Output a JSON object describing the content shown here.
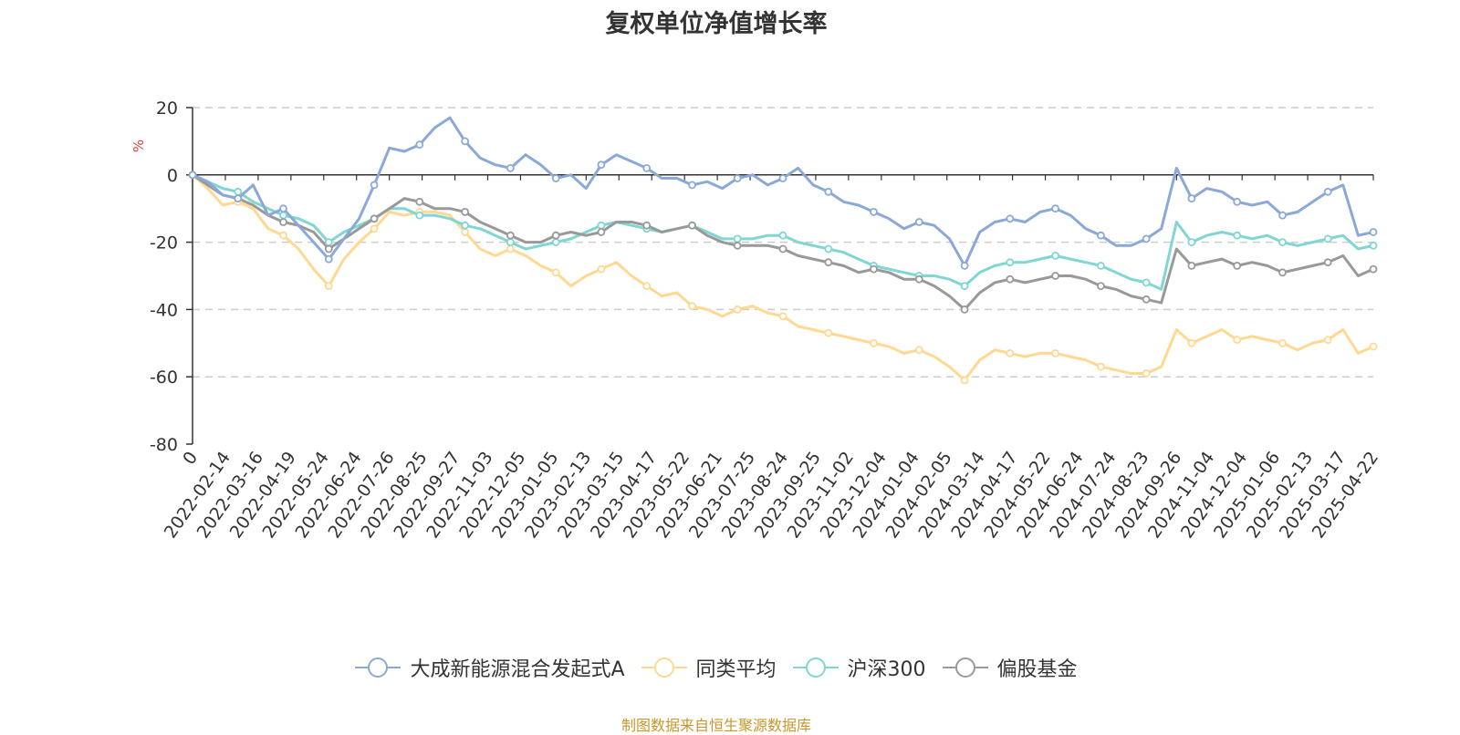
{
  "chart_data": {
    "type": "line",
    "title": "复权单位净值增长率",
    "ylabel": "%",
    "ylim": [
      -80,
      20
    ],
    "yticks": [
      20,
      0,
      -20,
      -40,
      -60,
      -80
    ],
    "grid": true,
    "legend_position": "bottom",
    "x_tick_labels": [
      "0",
      "2022-02-14",
      "2022-03-16",
      "2022-04-19",
      "2022-05-24",
      "2022-06-24",
      "2022-07-26",
      "2022-08-25",
      "2022-09-27",
      "2022-11-03",
      "2022-12-05",
      "2023-01-05",
      "2023-02-13",
      "2023-03-15",
      "2023-04-17",
      "2023-05-22",
      "2023-06-21",
      "2023-07-25",
      "2023-08-24",
      "2023-09-25",
      "2023-11-02",
      "2023-12-04",
      "2024-01-04",
      "2024-02-05",
      "2024-03-14",
      "2024-04-17",
      "2024-05-22",
      "2024-06-24",
      "2024-07-24",
      "2024-08-23",
      "2024-09-26",
      "2024-11-04",
      "2024-12-04",
      "2025-01-06",
      "2025-02-13",
      "2025-03-17",
      "2025-04-22"
    ],
    "series": [
      {
        "name": "大成新能源混合发起式A",
        "color": "#8aa9d8",
        "values": [
          0,
          -2,
          -6,
          -7,
          -3,
          -12,
          -10,
          -15,
          -20,
          -25,
          -19,
          -13,
          -3,
          8,
          7,
          9,
          14,
          17,
          10,
          5,
          3,
          2,
          6,
          3,
          -1,
          0,
          -4,
          3,
          6,
          4,
          2,
          -1,
          -1,
          -3,
          -2,
          -4,
          -1,
          0,
          -3,
          -1,
          2,
          -3,
          -5,
          -8,
          -9,
          -11,
          -13,
          -16,
          -14,
          -15,
          -19,
          -27,
          -17,
          -14,
          -13,
          -14,
          -11,
          -10,
          -12,
          -16,
          -18,
          -21,
          -21,
          -19,
          -16,
          2,
          -7,
          -4,
          -5,
          -8,
          -9,
          -8,
          -12,
          -11,
          -8,
          -5,
          -3,
          -18,
          -17
        ]
      },
      {
        "name": "同类平均",
        "color": "#ffd892",
        "values": [
          0,
          -4,
          -9,
          -8,
          -10,
          -16,
          -18,
          -22,
          -28,
          -33,
          -25,
          -20,
          -16,
          -11,
          -12,
          -11,
          -11,
          -12,
          -17,
          -22,
          -24,
          -22,
          -24,
          -27,
          -29,
          -33,
          -30,
          -28,
          -26,
          -30,
          -33,
          -36,
          -35,
          -39,
          -40,
          -42,
          -40,
          -39,
          -41,
          -42,
          -45,
          -46,
          -47,
          -48,
          -49,
          -50,
          -51,
          -53,
          -52,
          -54,
          -57,
          -61,
          -55,
          -52,
          -53,
          -54,
          -53,
          -53,
          -54,
          -55,
          -57,
          -58,
          -59,
          -59,
          -57,
          -46,
          -50,
          -48,
          -46,
          -49,
          -48,
          -49,
          -50,
          -52,
          -50,
          -49,
          -46,
          -53,
          -51
        ]
      },
      {
        "name": "沪深300",
        "color": "#7fd6d2",
        "values": [
          0,
          -2,
          -4,
          -5,
          -8,
          -10,
          -12,
          -13,
          -15,
          -20,
          -17,
          -15,
          -13,
          -10,
          -10,
          -12,
          -12,
          -13,
          -15,
          -16,
          -18,
          -20,
          -22,
          -21,
          -20,
          -19,
          -17,
          -15,
          -14,
          -15,
          -16,
          -17,
          -16,
          -15,
          -17,
          -19,
          -19,
          -19,
          -18,
          -18,
          -20,
          -21,
          -22,
          -23,
          -25,
          -27,
          -28,
          -29,
          -30,
          -30,
          -31,
          -33,
          -29,
          -27,
          -26,
          -26,
          -25,
          -24,
          -25,
          -26,
          -27,
          -29,
          -31,
          -32,
          -34,
          -14,
          -20,
          -18,
          -17,
          -18,
          -19,
          -18,
          -20,
          -21,
          -20,
          -19,
          -18,
          -22,
          -21
        ]
      },
      {
        "name": "偏股基金",
        "color": "#999999",
        "values": [
          0,
          -3,
          -6,
          -7,
          -9,
          -12,
          -14,
          -15,
          -17,
          -22,
          -19,
          -16,
          -13,
          -10,
          -7,
          -8,
          -10,
          -10,
          -11,
          -14,
          -16,
          -18,
          -20,
          -20,
          -18,
          -17,
          -18,
          -17,
          -14,
          -14,
          -15,
          -17,
          -16,
          -15,
          -18,
          -20,
          -21,
          -21,
          -21,
          -22,
          -24,
          -25,
          -26,
          -27,
          -29,
          -28,
          -29,
          -31,
          -31,
          -33,
          -36,
          -40,
          -35,
          -32,
          -31,
          -32,
          -31,
          -30,
          -30,
          -31,
          -33,
          -34,
          -36,
          -37,
          -38,
          -22,
          -27,
          -26,
          -25,
          -27,
          -26,
          -27,
          -29,
          -28,
          -27,
          -26,
          -24,
          -30,
          -28
        ]
      }
    ]
  },
  "footer": {
    "source": "制图数据来自恒生聚源数据库"
  }
}
